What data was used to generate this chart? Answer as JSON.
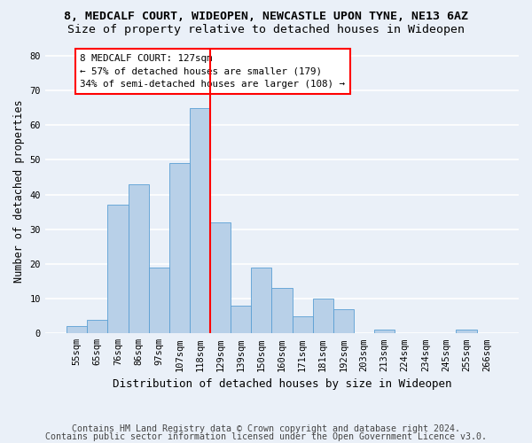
{
  "title1": "8, MEDCALF COURT, WIDEOPEN, NEWCASTLE UPON TYNE, NE13 6AZ",
  "title2": "Size of property relative to detached houses in Wideopen",
  "xlabel": "Distribution of detached houses by size in Wideopen",
  "ylabel": "Number of detached properties",
  "footnote1": "Contains HM Land Registry data © Crown copyright and database right 2024.",
  "footnote2": "Contains public sector information licensed under the Open Government Licence v3.0.",
  "bin_labels": [
    "55sqm",
    "65sqm",
    "76sqm",
    "86sqm",
    "97sqm",
    "107sqm",
    "118sqm",
    "129sqm",
    "139sqm",
    "150sqm",
    "160sqm",
    "171sqm",
    "181sqm",
    "192sqm",
    "203sqm",
    "213sqm",
    "224sqm",
    "234sqm",
    "245sqm",
    "255sqm",
    "266sqm"
  ],
  "bar_values": [
    2,
    4,
    37,
    43,
    19,
    49,
    65,
    32,
    8,
    19,
    13,
    5,
    10,
    7,
    0,
    1,
    0,
    0,
    0,
    1,
    0
  ],
  "bar_color": "#b8d0e8",
  "bar_edge_color": "#5a9fd4",
  "annotation_text": "8 MEDCALF COURT: 127sqm\n← 57% of detached houses are smaller (179)\n34% of semi-detached houses are larger (108) →",
  "annotation_box_color": "white",
  "annotation_box_edge_color": "red",
  "vline_color": "red",
  "vline_x": 6.5,
  "ylim": [
    0,
    82
  ],
  "yticks": [
    0,
    10,
    20,
    30,
    40,
    50,
    60,
    70,
    80
  ],
  "background_color": "#eaf0f8",
  "grid_color": "white",
  "title1_fontsize": 9.5,
  "title2_fontsize": 9.5,
  "xlabel_fontsize": 9,
  "ylabel_fontsize": 8.5,
  "tick_fontsize": 7.5,
  "footnote_fontsize": 7.2
}
